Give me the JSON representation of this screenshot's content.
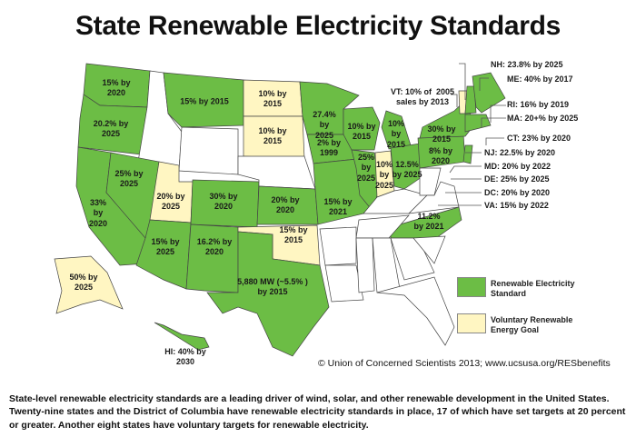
{
  "title": "State Renewable Electricity Standards",
  "colors": {
    "standard": "#6cbd45",
    "goal": "#fff6c2",
    "none": "#ffffff"
  },
  "states": {
    "WA": {
      "label": "15% by\n2020",
      "status": "standard"
    },
    "OR": {
      "label": "20.2% by\n2025",
      "status": "standard"
    },
    "CA": {
      "label": "33%\nby\n2020",
      "status": "standard"
    },
    "NV": {
      "label": "25% by\n2025",
      "status": "standard"
    },
    "MT": {
      "label": "15% by 2015",
      "status": "standard"
    },
    "UT": {
      "label": "20% by\n2025",
      "status": "goal"
    },
    "CO": {
      "label": "30% by\n2020",
      "status": "standard"
    },
    "AZ": {
      "label": "15% by\n2025",
      "status": "standard"
    },
    "NM": {
      "label": "16.2% by\n2020",
      "status": "standard"
    },
    "TX": {
      "label": "5,880 MW (~5.5% )\nby 2015",
      "status": "standard"
    },
    "ND": {
      "label": "10% by\n2015",
      "status": "goal"
    },
    "SD": {
      "label": "10% by\n2015",
      "status": "goal"
    },
    "KS": {
      "label": "20% by\n2020",
      "status": "standard"
    },
    "OK": {
      "label": "15% by\n2015",
      "status": "goal"
    },
    "MN": {
      "label": "27.4%\nby\n2025",
      "status": "standard"
    },
    "IA": {
      "label": "2% by\n1999",
      "status": "standard"
    },
    "MO": {
      "label": "15% by\n2021",
      "status": "standard"
    },
    "WI": {
      "label": "10% by\n2015",
      "status": "standard"
    },
    "IL": {
      "label": "25%\nby\n2025",
      "status": "standard"
    },
    "MI": {
      "label": "10%\nby\n2015",
      "status": "standard"
    },
    "IN": {
      "label": "10%\nby\n2025",
      "status": "goal"
    },
    "OH": {
      "label": "12.5%\nby 2025",
      "status": "standard"
    },
    "PA": {
      "label": "8% by\n2020",
      "status": "standard"
    },
    "NY": {
      "label": "30% by\n2015",
      "status": "standard"
    },
    "NC": {
      "label": "11.2%\nby 2021",
      "status": "standard"
    },
    "AK": {
      "label": "50% by\n2025",
      "status": "goal"
    },
    "HI": {
      "label": "HI: 40% by\n2030",
      "status": "standard"
    }
  },
  "callouts": {
    "NH": "NH: 23.8% by 2025",
    "ME": "ME: 40% by 2017",
    "VT": "VT: 10% of  2005\nsales by 2013",
    "RI": "RI: 16% by 2019",
    "MA": "MA: 20+% by 2025",
    "CT": "CT: 23% by 2020",
    "NJ": "NJ: 22.5% by 2020",
    "MD": "MD: 20% by 2022",
    "DE": "DE: 25% by 2025",
    "DC": "DC: 20% by 2020",
    "VA": "VA: 15% by 2022"
  },
  "legend": [
    {
      "label": "Renewable Electricity\nStandard",
      "color": "#6cbd45"
    },
    {
      "label": "Voluntary Renewable\nEnergy Goal",
      "color": "#fff6c2"
    }
  ],
  "copyright": "© Union of Concerned Scientists 2013; www.ucsusa.org/RESbenefits",
  "caption": "State-level renewable electricity standards are a leading driver of wind, solar, and other renewable development in the United States. Twenty-nine states and the District of Columbia have renewable electricity standards in place, 17 of which have set targets at 20 percent or greater. Another eight states have voluntary targets for renewable electricity."
}
